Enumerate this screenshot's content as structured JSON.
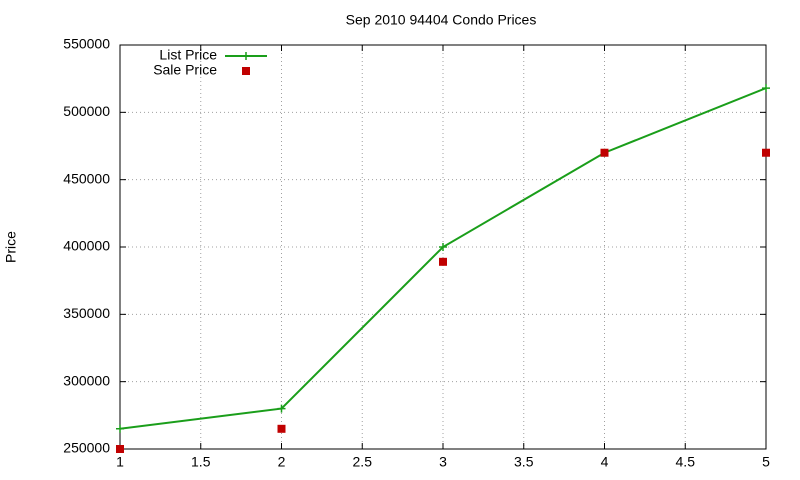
{
  "chart_data": {
    "type": "line",
    "title": "Sep 2010 94404 Condo Prices",
    "y_label": "Price",
    "x": [
      1,
      2,
      3,
      4,
      5
    ],
    "series": [
      {
        "name": "List Price",
        "color": "#1a9e1a",
        "mode": "linespoints",
        "values": [
          265000,
          280000,
          400000,
          470000,
          518000
        ]
      },
      {
        "name": "Sale Price",
        "color": "#c00000",
        "mode": "points",
        "values": [
          250000,
          265000,
          389000,
          470000,
          470000
        ]
      }
    ],
    "xlim": [
      1,
      5
    ],
    "xticks": [
      1,
      1.5,
      2,
      2.5,
      3,
      3.5,
      4,
      4.5,
      5
    ],
    "ylim": [
      250000,
      550000
    ],
    "yticks": [
      250000,
      300000,
      350000,
      400000,
      450000,
      500000,
      550000
    ],
    "grid": true,
    "legend": "top-left"
  }
}
